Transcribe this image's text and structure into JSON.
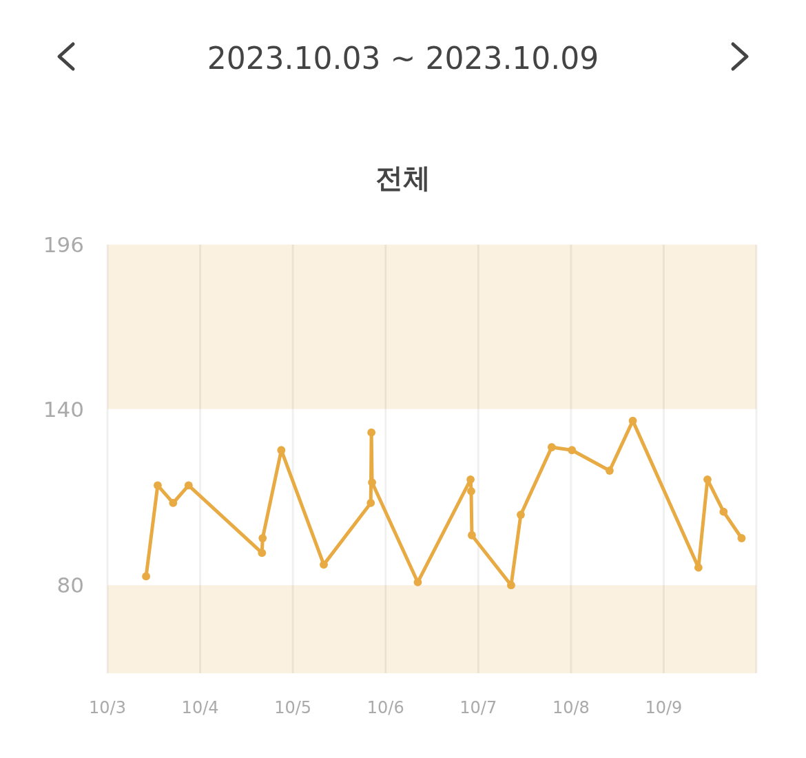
{
  "chart_data": {
    "type": "line",
    "title": "2023.10.03 ~ 2023.10.09",
    "subtitle": "전체",
    "x": [
      "2023-10-03T10:00",
      "2023-10-03T13:00",
      "2023-10-03T17:00",
      "2023-10-03T21:00",
      "2023-10-04T16:00",
      "2023-10-04T16:10",
      "2023-10-04T21:00",
      "2023-10-05T08:00",
      "2023-10-05T20:10",
      "2023-10-05T20:20",
      "2023-10-05T20:30",
      "2023-10-06T08:20",
      "2023-10-06T22:00",
      "2023-10-06T22:10",
      "2023-10-06T22:20",
      "2023-10-07T08:30",
      "2023-10-07T11:00",
      "2023-10-07T19:00",
      "2023-10-08T00:15",
      "2023-10-08T10:00",
      "2023-10-08T16:00",
      "2023-10-09T09:00",
      "2023-10-09T11:20",
      "2023-10-09T15:30",
      "2023-10-09T20:10"
    ],
    "series": [
      {
        "color": "#e8aa42",
        "values": [
          83,
          114,
          108,
          114,
          91,
          96,
          126,
          87,
          108,
          132,
          115,
          81,
          116,
          112,
          97,
          80,
          104,
          127,
          126,
          119,
          136,
          86,
          116,
          105,
          96
        ]
      }
    ],
    "xlim": [
      "2023-10-03",
      "2023-10-10"
    ],
    "xticks": [
      {
        "value": "2023-10-03",
        "label": "10/3"
      },
      {
        "value": "2023-10-04",
        "label": "10/4"
      },
      {
        "value": "2023-10-05",
        "label": "10/5"
      },
      {
        "value": "2023-10-06",
        "label": "10/6"
      },
      {
        "value": "2023-10-07",
        "label": "10/7"
      },
      {
        "value": "2023-10-08",
        "label": "10/8"
      },
      {
        "value": "2023-10-09",
        "label": "10/9"
      },
      {
        "value": "2023-10-10",
        "label": null
      }
    ],
    "ylim": [
      50,
      196
    ],
    "yticks": [
      80,
      140,
      196
    ],
    "bands": [
      {
        "axis": "y",
        "from": 140,
        "to": 196,
        "color": "#faf1e0"
      },
      {
        "axis": "y",
        "from": 50,
        "to": 80,
        "color": "#faf1e0"
      }
    ],
    "grid": "x",
    "marker": "circle",
    "line_style": "solid"
  }
}
